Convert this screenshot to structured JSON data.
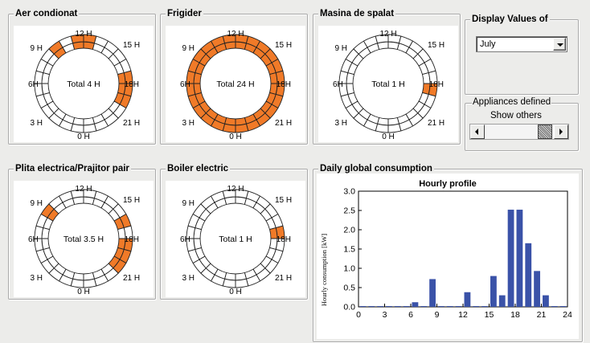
{
  "panels": [
    {
      "id": "aer",
      "title": "Aer condionat",
      "total": "Total 4 H",
      "on_hours": [
        9,
        11,
        12,
        17,
        18,
        19
      ]
    },
    {
      "id": "frigider",
      "title": "Frigider",
      "total": "Total 24 H",
      "on_hours": [
        0,
        1,
        2,
        3,
        4,
        5,
        6,
        7,
        8,
        9,
        10,
        11,
        12,
        13,
        14,
        15,
        16,
        17,
        18,
        19,
        20,
        21,
        22,
        23
      ]
    },
    {
      "id": "masina",
      "title": "Masina de spalat",
      "total": "Total 1 H",
      "on_hours": [
        18
      ]
    },
    {
      "id": "plita",
      "title": "Plita electrica/Prajitor pair",
      "total": "Total 3.5 H",
      "on_hours": [
        8,
        16,
        18,
        19,
        20
      ]
    },
    {
      "id": "boiler",
      "title": "Boiler electric",
      "total": "Total 1 H",
      "on_hours": [
        17
      ]
    }
  ],
  "wheel_labels": {
    "h12": "12 H",
    "h15": "15 H",
    "h18": "18H",
    "h21": "21 H",
    "h0": "0 H",
    "h3": "3 H",
    "h6": "6H",
    "h9": "9 H"
  },
  "display_values": {
    "title": "Display Values of",
    "selected": "July"
  },
  "appliances": {
    "title": "Appliances defined",
    "show_others": "Show others"
  },
  "daily": {
    "title": "Daily global consumption"
  },
  "colors": {
    "on": "#f07a28",
    "off": "#ffffff",
    "bar": "#3a52a8"
  },
  "chart_data": {
    "type": "bar",
    "title": "Hourly profile",
    "ylabel": "Hourly consumption [kW]",
    "xlabel": "",
    "xlim": [
      0,
      24
    ],
    "ylim": [
      0,
      3.0
    ],
    "xticks": [
      0,
      3,
      6,
      9,
      12,
      15,
      18,
      21,
      24
    ],
    "yticks": [
      "0.0",
      "0.5",
      "1.0",
      "1.5",
      "2.0",
      "2.5",
      "3.0"
    ],
    "x": [
      0,
      1,
      2,
      3,
      4,
      5,
      6,
      7,
      8,
      9,
      10,
      11,
      12,
      13,
      14,
      15,
      16,
      17,
      18,
      19,
      20,
      21,
      22,
      23
    ],
    "values": [
      0.02,
      0.02,
      0.02,
      0.02,
      0.02,
      0.02,
      0.12,
      0.02,
      0.72,
      0.02,
      0.02,
      0.02,
      0.38,
      0.02,
      0.02,
      0.8,
      0.3,
      2.52,
      2.52,
      1.65,
      0.93,
      0.3,
      0.02,
      0.02
    ]
  }
}
